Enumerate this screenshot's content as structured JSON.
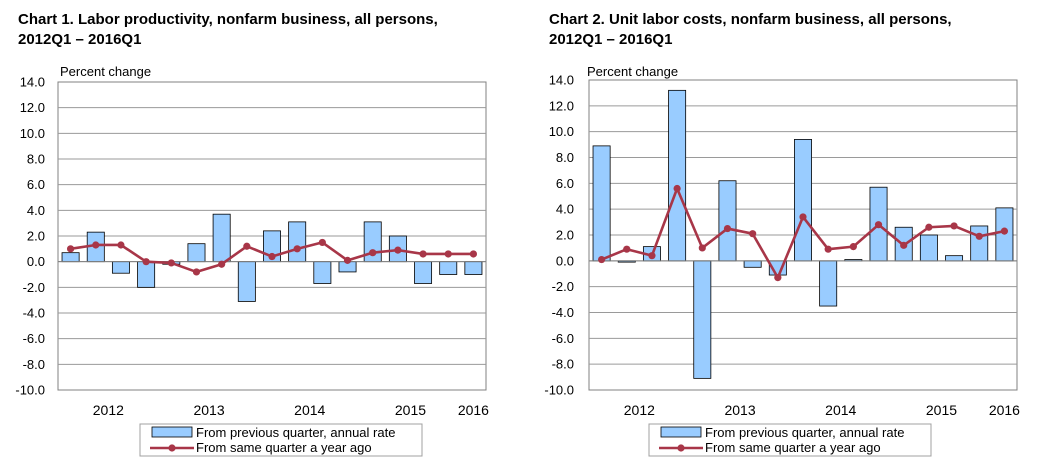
{
  "chart_data": [
    {
      "type": "bar",
      "title_line1": "Chart  1. Labor productivity, nonfarm business, all persons,",
      "title_line2": "2012Q1 – 2016Q1",
      "ylabel": "Percent change",
      "ylim": [
        -10,
        14
      ],
      "ytick_step": 2,
      "ytick_labels": [
        "14.0",
        "12.0",
        "10.0",
        "8.0",
        "6.0",
        "4.0",
        "2.0",
        "0.0",
        "-2.0",
        "-4.0",
        "-6.0",
        "-8.0",
        "-10.0"
      ],
      "year_labels": [
        "2012",
        "2013",
        "2014",
        "2015",
        "2016"
      ],
      "year_label_quarter_index": [
        1.5,
        5.5,
        9.5,
        13.5,
        16
      ],
      "quarters": [
        "2012Q1",
        "2012Q2",
        "2012Q3",
        "2012Q4",
        "2013Q1",
        "2013Q2",
        "2013Q3",
        "2013Q4",
        "2014Q1",
        "2014Q2",
        "2014Q3",
        "2014Q4",
        "2015Q1",
        "2015Q2",
        "2015Q3",
        "2015Q4",
        "2016Q1"
      ],
      "series": [
        {
          "name": "From previous quarter, annual rate",
          "kind": "bar",
          "color": "#99ccff",
          "values": [
            0.7,
            2.3,
            -0.9,
            -2.0,
            -0.2,
            1.4,
            3.7,
            -3.1,
            2.4,
            3.1,
            -1.7,
            -0.8,
            3.1,
            2.0,
            -1.7,
            -1.0,
            -1.0
          ]
        },
        {
          "name": "From same quarter a year ago",
          "kind": "line",
          "color": "#a83648",
          "values": [
            1.0,
            1.3,
            1.3,
            0.0,
            -0.1,
            -0.8,
            -0.2,
            1.2,
            0.4,
            1.0,
            1.5,
            0.1,
            0.7,
            0.9,
            0.6,
            0.6,
            0.6
          ]
        }
      ]
    },
    {
      "type": "bar",
      "title_line1": "Chart  2. Unit labor costs, nonfarm business, all persons,",
      "title_line2": "2012Q1 – 2016Q1",
      "ylabel": "Percent change",
      "ylim": [
        -10,
        14
      ],
      "ytick_step": 2,
      "ytick_labels": [
        "14.0",
        "12.0",
        "10.0",
        "8.0",
        "6.0",
        "4.0",
        "2.0",
        "0.0",
        "-2.0",
        "-4.0",
        "-6.0",
        "-8.0",
        "-10.0"
      ],
      "year_labels": [
        "2012",
        "2013",
        "2014",
        "2015",
        "2016"
      ],
      "year_label_quarter_index": [
        1.5,
        5.5,
        9.5,
        13.5,
        16
      ],
      "quarters": [
        "2012Q1",
        "2012Q2",
        "2012Q3",
        "2012Q4",
        "2013Q1",
        "2013Q2",
        "2013Q3",
        "2013Q4",
        "2014Q1",
        "2014Q2",
        "2014Q3",
        "2014Q4",
        "2015Q1",
        "2015Q2",
        "2015Q3",
        "2015Q4",
        "2016Q1"
      ],
      "series": [
        {
          "name": "From previous quarter, annual rate",
          "kind": "bar",
          "color": "#99ccff",
          "values": [
            8.9,
            -0.1,
            1.1,
            13.2,
            -9.1,
            6.2,
            -0.5,
            -1.1,
            9.4,
            -3.5,
            0.1,
            5.7,
            2.6,
            2.0,
            0.4,
            2.7,
            4.1
          ]
        },
        {
          "name": "From same quarter a year ago",
          "kind": "line",
          "color": "#a83648",
          "values": [
            0.1,
            0.9,
            0.4,
            5.6,
            1.0,
            2.5,
            2.1,
            -1.3,
            3.4,
            0.9,
            1.1,
            2.8,
            1.2,
            2.6,
            2.7,
            1.9,
            2.3
          ]
        }
      ]
    }
  ]
}
